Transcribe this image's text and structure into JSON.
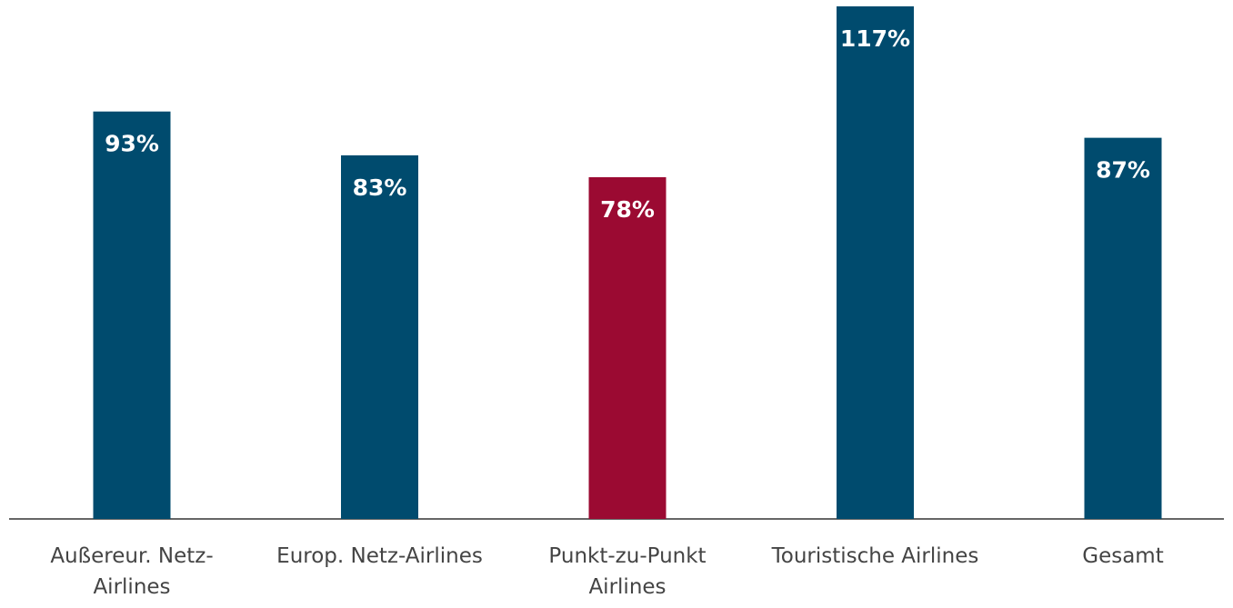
{
  "chart_data": {
    "type": "bar",
    "categories": [
      "Außereur. Netz-Airlines",
      "Europ. Netz-Airlines",
      "Punkt-zu-Punkt Airlines",
      "Touristische Airlines",
      "Gesamt"
    ],
    "values": [
      93,
      83,
      78,
      117,
      87
    ],
    "value_labels": [
      "93%",
      "83%",
      "78%",
      "117%",
      "87%"
    ],
    "colors": [
      "#004b6e",
      "#004b6e",
      "#9b0a32",
      "#004b6e",
      "#004b6e"
    ]
  }
}
